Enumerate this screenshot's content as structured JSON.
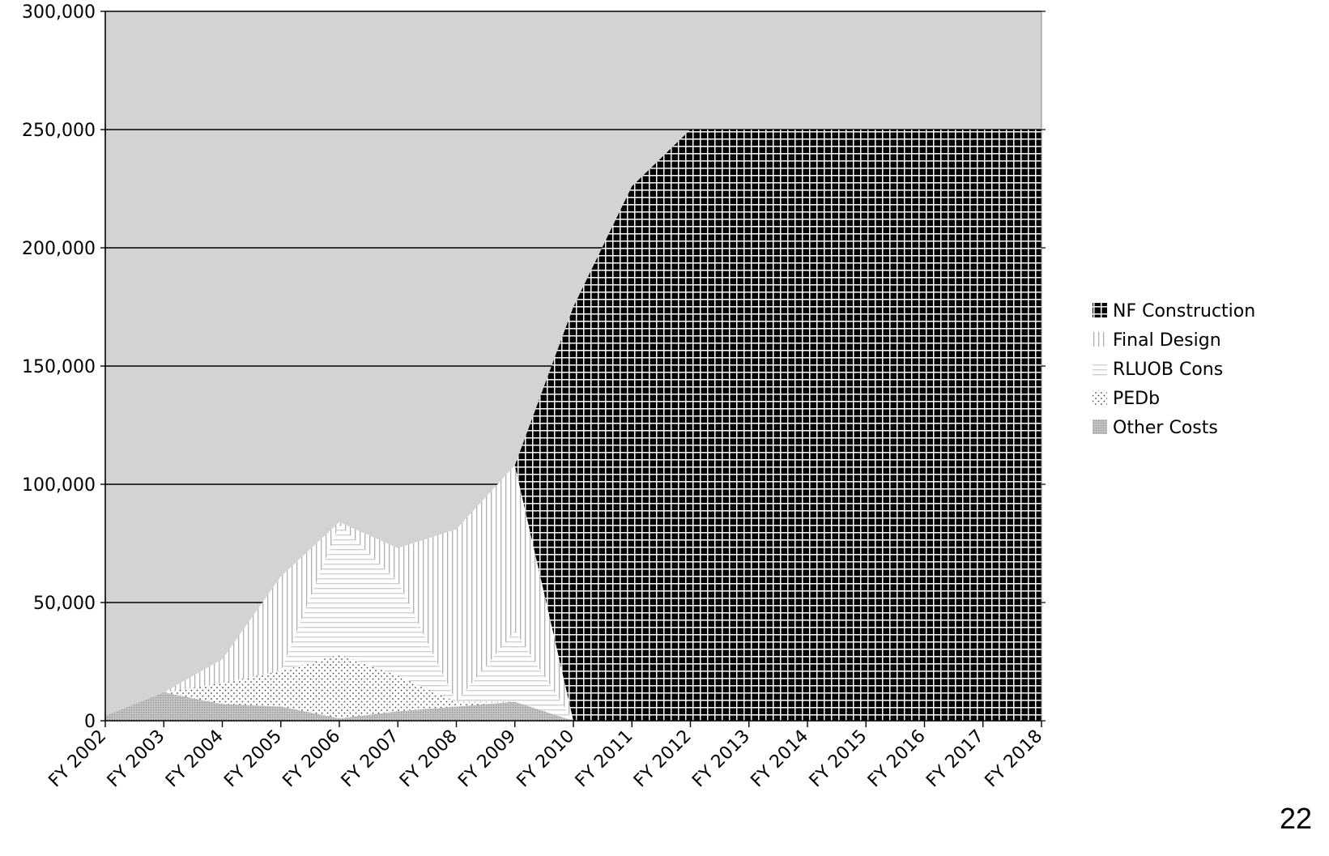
{
  "chart_data": {
    "type": "area",
    "stacked": true,
    "categories": [
      "FY 2002",
      "FY 2003",
      "FY 2004",
      "FY 2005",
      "FY 2006",
      "FY 2007",
      "FY 2008",
      "FY 2009",
      "FY 2010",
      "FY 2011",
      "FY 2012",
      "FY 2013",
      "FY 2014",
      "FY 2015",
      "FY 2016",
      "FY 2017",
      "FY 2018"
    ],
    "series": [
      {
        "name": "Other Costs",
        "pattern": "dense-dots",
        "values": [
          2000,
          12000,
          7000,
          6000,
          1000,
          4000,
          6000,
          8000,
          0,
          0,
          0,
          0,
          0,
          0,
          0,
          0,
          0
        ]
      },
      {
        "name": "PEDb",
        "pattern": "dots",
        "values": [
          0,
          0,
          9000,
          15000,
          27000,
          15000,
          2000,
          0,
          0,
          0,
          0,
          0,
          0,
          0,
          0,
          0,
          0
        ]
      },
      {
        "name": "RLUOB Cons",
        "pattern": "hstripes",
        "values": [
          0,
          0,
          0,
          0,
          55000,
          40000,
          0,
          30000,
          0,
          0,
          0,
          0,
          0,
          0,
          0,
          0,
          0
        ]
      },
      {
        "name": "Final Design",
        "pattern": "vstripes",
        "values": [
          0,
          0,
          10000,
          40000,
          1000,
          14000,
          73000,
          70000,
          0,
          0,
          0,
          0,
          0,
          0,
          0,
          0,
          0
        ]
      },
      {
        "name": "NF Construction",
        "pattern": "grid",
        "values": [
          0,
          0,
          0,
          0,
          0,
          0,
          0,
          0,
          175000,
          226000,
          250000,
          250000,
          250000,
          250000,
          250000,
          250000,
          250000
        ]
      }
    ],
    "y_ticks": [
      "0",
      "50,000",
      "100,000",
      "150,000",
      "200,000",
      "250,000",
      "300,000"
    ],
    "ylim": [
      0,
      300000
    ],
    "grid": true,
    "legend_position": "right",
    "plot_background": "#d3d3d3"
  },
  "legend": {
    "items": [
      {
        "label": "NF Construction",
        "pattern": "grid"
      },
      {
        "label": "Final Design",
        "pattern": "vstripes"
      },
      {
        "label": "RLUOB Cons",
        "pattern": "hstripes"
      },
      {
        "label": "PEDb",
        "pattern": "dots"
      },
      {
        "label": "Other Costs",
        "pattern": "dense-dots"
      }
    ]
  },
  "page_number": "22"
}
